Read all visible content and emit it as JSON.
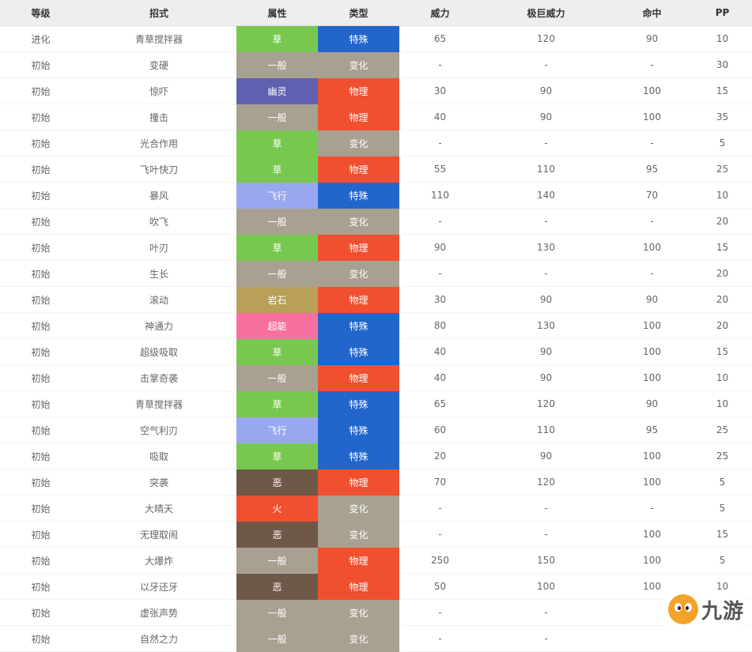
{
  "table": {
    "headers": [
      "等级",
      "招式",
      "属性",
      "类型",
      "威力",
      "极巨威力",
      "命中",
      "PP"
    ],
    "rows": [
      [
        "进化",
        "青草搅拌器",
        "草",
        "特殊",
        "65",
        "120",
        "90",
        "10"
      ],
      [
        "初始",
        "变硬",
        "一般",
        "变化",
        "-",
        "-",
        "-",
        "30"
      ],
      [
        "初始",
        "惊吓",
        "幽灵",
        "物理",
        "30",
        "90",
        "100",
        "15"
      ],
      [
        "初始",
        "撞击",
        "一般",
        "物理",
        "40",
        "90",
        "100",
        "35"
      ],
      [
        "初始",
        "光合作用",
        "草",
        "变化",
        "-",
        "-",
        "-",
        "5"
      ],
      [
        "初始",
        "飞叶快刀",
        "草",
        "物理",
        "55",
        "110",
        "95",
        "25"
      ],
      [
        "初始",
        "暴风",
        "飞行",
        "特殊",
        "110",
        "140",
        "70",
        "10"
      ],
      [
        "初始",
        "吹飞",
        "一般",
        "变化",
        "-",
        "-",
        "-",
        "20"
      ],
      [
        "初始",
        "叶刃",
        "草",
        "物理",
        "90",
        "130",
        "100",
        "15"
      ],
      [
        "初始",
        "生长",
        "一般",
        "变化",
        "-",
        "-",
        "-",
        "20"
      ],
      [
        "初始",
        "滚动",
        "岩石",
        "物理",
        "30",
        "90",
        "90",
        "20"
      ],
      [
        "初始",
        "神通力",
        "超能",
        "特殊",
        "80",
        "130",
        "100",
        "20"
      ],
      [
        "初始",
        "超级吸取",
        "草",
        "特殊",
        "40",
        "90",
        "100",
        "15"
      ],
      [
        "初始",
        "击掌奇袭",
        "一般",
        "物理",
        "40",
        "90",
        "100",
        "10"
      ],
      [
        "初始",
        "青草搅拌器",
        "草",
        "特殊",
        "65",
        "120",
        "90",
        "10"
      ],
      [
        "初始",
        "空气利刃",
        "飞行",
        "特殊",
        "60",
        "110",
        "95",
        "25"
      ],
      [
        "初始",
        "吸取",
        "草",
        "特殊",
        "20",
        "90",
        "100",
        "25"
      ],
      [
        "初始",
        "突袭",
        "恶",
        "物理",
        "70",
        "120",
        "100",
        "5"
      ],
      [
        "初始",
        "大晴天",
        "火",
        "变化",
        "-",
        "-",
        "-",
        "5"
      ],
      [
        "初始",
        "无理取闹",
        "恶",
        "变化",
        "-",
        "-",
        "100",
        "15"
      ],
      [
        "初始",
        "大爆炸",
        "一般",
        "物理",
        "250",
        "150",
        "100",
        "5"
      ],
      [
        "初始",
        "以牙还牙",
        "恶",
        "物理",
        "50",
        "100",
        "100",
        "10"
      ],
      [
        "初始",
        "虚张声势",
        "一般",
        "变化",
        "-",
        "-",
        "",
        ""
      ],
      [
        "初始",
        "自然之力",
        "一般",
        "变化",
        "-",
        "-",
        "",
        ""
      ]
    ]
  },
  "type_colors": {
    "草": "#78c850",
    "一般": "#a8a090",
    "幽灵": "#6060b0",
    "飞行": "#98a8f0",
    "岩石": "#b8a058",
    "超能": "#f870a0",
    "恶": "#705848",
    "火": "#f05030"
  },
  "category_colors": {
    "特殊": "#2266cc",
    "物理": "#f05030",
    "变化": "#a8a090"
  },
  "watermark": {
    "icon": "jiuyou-logo-icon",
    "text": "九游"
  }
}
